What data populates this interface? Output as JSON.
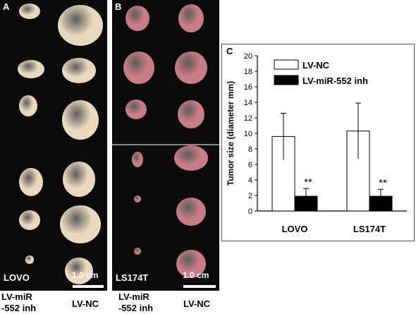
{
  "panel_a": {
    "label": "A",
    "cell_line": "LOVO",
    "scale_bar": "1.0 cm",
    "col_left_label_1": "LV-miR",
    "col_left_label_2": "-552 inh",
    "col_right_label": "LV-NC"
  },
  "panel_b": {
    "label": "B",
    "cell_line": "LS174T",
    "scale_bar": "1.0 cm",
    "col_left_label_1": "LV-miR",
    "col_left_label_2": "-552 inh",
    "col_right_label": "LV-NC"
  },
  "panel_c": {
    "label": "C"
  },
  "colors": {
    "lovo_tumor": "#ead9bf",
    "ls174t_tumor": "#c97b86",
    "photo_bg": "#0b0b0b",
    "bar_nc": "#ffffff",
    "bar_inh": "#000000"
  },
  "chart_data": {
    "type": "bar",
    "categories": [
      "LOVO",
      "LS174T"
    ],
    "ylabel": "Tumor size (diameter mm)",
    "ylim": [
      0,
      20
    ],
    "yticks": [
      0,
      2,
      4,
      6,
      8,
      10,
      12,
      14,
      16,
      18,
      20
    ],
    "legend_position": "top",
    "series": [
      {
        "name": "LV-NC",
        "values": [
          9.6,
          10.3
        ],
        "errors": [
          3.0,
          3.6
        ],
        "color": "#ffffff"
      },
      {
        "name": "LV-miR-552 inh",
        "values": [
          1.9,
          1.9
        ],
        "errors": [
          1.0,
          0.9
        ],
        "color": "#000000"
      }
    ],
    "annotations": [
      "**",
      "**"
    ]
  }
}
